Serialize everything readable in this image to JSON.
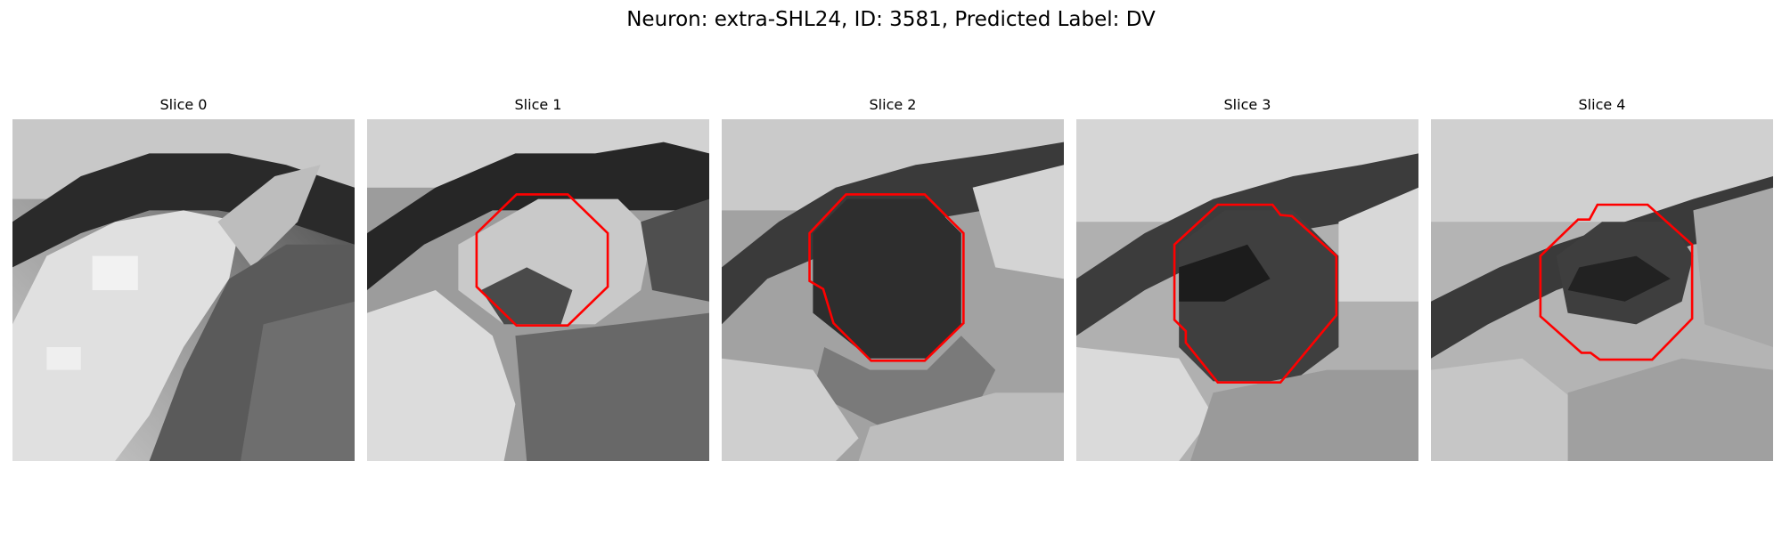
{
  "figure": {
    "title": "Neuron: extra-SHL24, ID: 3581, Predicted Label: DV"
  },
  "colors": {
    "contour": "#ff0000",
    "background": "#ffffff"
  },
  "panels": [
    {
      "title": "Slice 0",
      "has_contour": false
    },
    {
      "title": "Slice 1",
      "has_contour": true
    },
    {
      "title": "Slice 2",
      "has_contour": true
    },
    {
      "title": "Slice 3",
      "has_contour": true
    },
    {
      "title": "Slice 4",
      "has_contour": true
    }
  ]
}
